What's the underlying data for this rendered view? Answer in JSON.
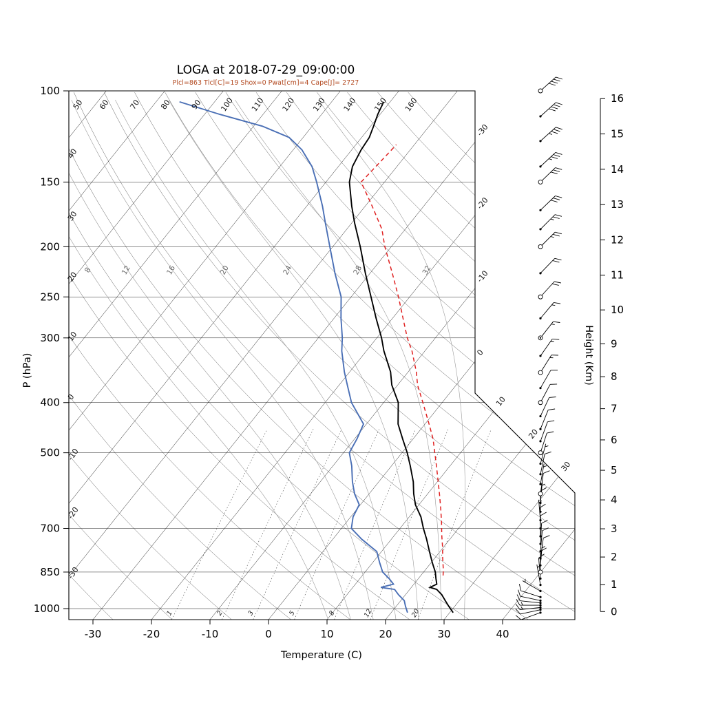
{
  "title": "LOGA at 2018-07-29_09:00:00",
  "params_line": "Plcl=863 Tlcl[C]=19 Shox=0 Pwat[cm]=4 Cape[J]= 2727",
  "axes": {
    "xlabel": "Temperature (C)",
    "ylabel": "P (hPa)",
    "right_axis_label": "Height (Km)",
    "pressure_ticks_hpa": [
      100,
      150,
      200,
      250,
      300,
      400,
      500,
      700,
      850,
      1000
    ],
    "temperature_ticks_c": [
      -30,
      -20,
      -10,
      0,
      10,
      20,
      30,
      40
    ],
    "height_ticks_km": [
      0,
      1,
      2,
      3,
      4,
      5,
      6,
      7,
      8,
      9,
      10,
      11,
      12,
      13,
      14,
      15,
      16
    ],
    "pressure_range_hpa": [
      100,
      1050
    ],
    "grid_on": true
  },
  "grid": {
    "isotherms_c": {
      "min": -110,
      "max": 40,
      "step": 10,
      "right_edge_labels": [
        -30,
        -20,
        -10,
        0,
        10,
        20,
        30
      ]
    },
    "dry_adiabats_c": [
      -60,
      -50,
      -40,
      -30,
      -20,
      -10,
      0,
      10,
      20,
      30,
      40,
      50,
      60,
      70,
      80,
      90,
      100,
      110,
      120,
      130,
      140,
      150,
      160
    ],
    "dry_adiabat_left_labels": [
      40,
      30,
      20,
      10,
      0,
      -10,
      -20,
      -30
    ],
    "dry_adiabat_top_labels": [
      50,
      60,
      70,
      80,
      90,
      100,
      110,
      120,
      130,
      140,
      150,
      160
    ],
    "moist_adiabats_c": [
      8,
      12,
      16,
      20,
      24,
      28,
      32
    ],
    "mixing_ratio_g_kg": [
      1,
      2,
      3,
      5,
      8,
      12,
      20
    ]
  },
  "chart_data": {
    "type": "line",
    "subtype": "skew-t log-p sounding",
    "station": "LOGA",
    "datetime": "2018-07-29_09:00:00",
    "title": "LOGA at 2018-07-29_09:00:00",
    "xlabel": "Temperature (C)",
    "ylabel": "P (hPa)",
    "indices": {
      "Plcl_hpa": 863,
      "Tlcl_c": 19,
      "Shox": 0,
      "Pwat_cm": 4,
      "Cape_J": 2727
    },
    "pressure_hpa": [
      1018,
      990,
      965,
      940,
      918,
      910,
      897,
      875,
      850,
      815,
      776,
      734,
      700,
      665,
      630,
      600,
      569,
      530,
      500,
      470,
      440,
      400,
      370,
      349,
      318,
      300,
      275,
      250,
      225,
      200,
      180,
      167,
      150,
      140,
      130,
      123,
      117,
      111,
      105
    ],
    "temperature_c": [
      30.6,
      29.0,
      27.6,
      26.2,
      24.6,
      23.2,
      23.9,
      23.0,
      22.0,
      20.2,
      18.2,
      16.0,
      14.0,
      12.0,
      9.4,
      7.6,
      5.9,
      3.2,
      0.9,
      -1.8,
      -4.6,
      -7.5,
      -11.0,
      -13.0,
      -17.0,
      -19.2,
      -22.8,
      -26.6,
      -30.8,
      -35.3,
      -39.5,
      -42.3,
      -46.0,
      -47.6,
      -48.4,
      -48.7,
      -49.5,
      -50.4,
      -51.1
    ],
    "dewpoint_c": [
      22.8,
      21.6,
      20.6,
      18.8,
      17.4,
      14.8,
      16.5,
      15.0,
      13.0,
      11.2,
      9.2,
      4.9,
      1.7,
      0.4,
      -0.2,
      -2.5,
      -4.5,
      -6.8,
      -9.0,
      -9.6,
      -10.5,
      -15.5,
      -18.6,
      -20.9,
      -24.2,
      -25.9,
      -28.8,
      -31.7,
      -36.0,
      -40.5,
      -44.5,
      -47.3,
      -51.6,
      -54.5,
      -58.5,
      -62.4,
      -68.5,
      -77.4,
      -86.0
    ],
    "parcel": {
      "pressure_hpa": [
        863,
        840,
        800,
        760,
        720,
        680,
        640,
        600,
        560,
        520,
        500,
        470,
        440,
        400,
        370,
        349,
        318,
        300,
        275,
        250,
        225,
        200,
        185,
        167,
        150,
        140,
        130,
        127
      ],
      "temperature_c": [
        23.8,
        23.0,
        21.4,
        19.8,
        18.0,
        16.2,
        14.2,
        12.0,
        9.6,
        7.0,
        5.6,
        3.4,
        0.7,
        -3.3,
        -6.6,
        -8.6,
        -12.2,
        -14.8,
        -18.2,
        -21.9,
        -26.2,
        -31.1,
        -34.0,
        -38.8,
        -44.0,
        -43.6,
        -43.2,
        -43.1
      ]
    },
    "winds_p_spdkt_dirdeg_marker": [
      [
        1018,
        12,
        250,
        0
      ],
      [
        1005,
        12,
        258,
        0
      ],
      [
        995,
        15,
        264,
        0
      ],
      [
        985,
        15,
        270,
        0
      ],
      [
        975,
        12,
        276,
        0
      ],
      [
        965,
        10,
        282,
        0
      ],
      [
        950,
        10,
        288,
        0
      ],
      [
        925,
        8,
        300,
        0
      ],
      [
        900,
        8,
        350,
        0
      ],
      [
        875,
        10,
        355,
        0
      ],
      [
        850,
        10,
        0,
        1
      ],
      [
        825,
        8,
        5,
        0
      ],
      [
        800,
        10,
        8,
        0
      ],
      [
        775,
        10,
        5,
        0
      ],
      [
        750,
        12,
        3,
        0
      ],
      [
        725,
        10,
        0,
        0
      ],
      [
        700,
        12,
        358,
        0
      ],
      [
        675,
        8,
        355,
        0
      ],
      [
        650,
        10,
        0,
        0
      ],
      [
        625,
        8,
        5,
        0
      ],
      [
        600,
        10,
        8,
        1
      ],
      [
        575,
        8,
        10,
        0
      ],
      [
        550,
        10,
        12,
        0
      ],
      [
        525,
        8,
        15,
        0
      ],
      [
        500,
        10,
        18,
        1
      ],
      [
        475,
        10,
        20,
        0
      ],
      [
        450,
        10,
        22,
        0
      ],
      [
        425,
        12,
        25,
        0
      ],
      [
        400,
        12,
        28,
        1
      ],
      [
        375,
        12,
        30,
        0
      ],
      [
        350,
        15,
        32,
        1
      ],
      [
        325,
        15,
        35,
        0
      ],
      [
        300,
        18,
        38,
        2
      ],
      [
        275,
        18,
        40,
        0
      ],
      [
        250,
        20,
        42,
        1
      ],
      [
        225,
        22,
        44,
        0
      ],
      [
        200,
        25,
        45,
        1
      ],
      [
        185,
        28,
        45,
        0
      ],
      [
        170,
        30,
        46,
        0
      ],
      [
        150,
        32,
        46,
        1
      ],
      [
        140,
        35,
        47,
        0
      ],
      [
        125,
        38,
        48,
        0
      ],
      [
        112,
        40,
        48,
        0
      ],
      [
        100,
        42,
        48,
        1
      ]
    ],
    "height_km_vs_pressure_hpa": [
      [
        0,
        1013.2
      ],
      [
        1,
        898.7
      ],
      [
        2,
        795.0
      ],
      [
        3,
        701.2
      ],
      [
        4,
        616.6
      ],
      [
        5,
        540.5
      ],
      [
        6,
        472.2
      ],
      [
        7,
        411.0
      ],
      [
        8,
        356.5
      ],
      [
        9,
        308.0
      ],
      [
        10,
        264.9
      ],
      [
        11,
        227.0
      ],
      [
        12,
        194.0
      ],
      [
        13,
        165.8
      ],
      [
        14,
        141.7
      ],
      [
        15,
        121.1
      ],
      [
        16,
        103.5
      ]
    ]
  },
  "colors": {
    "temperature": "#000000",
    "dewpoint": "#4a6fb5",
    "parcel": "#e02020",
    "params_text": "#b34a21",
    "moist_adiabat": "#9a9a9a",
    "background": "#ffffff"
  }
}
